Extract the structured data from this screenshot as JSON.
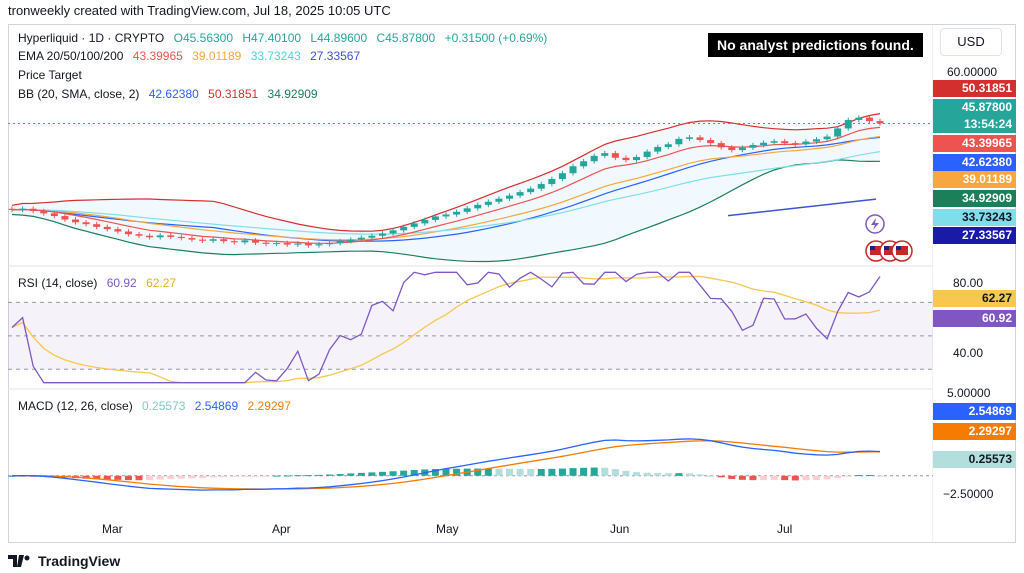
{
  "header": {
    "text": "tronweekly created with TradingView.com, Jul 18, 2025 10:05 UTC"
  },
  "footer": {
    "brand": "TradingView",
    "logo_icon": "tradingview-logo-icon"
  },
  "top_right": {
    "notice": "No analyst predictions found.",
    "currency": "USD"
  },
  "legend": {
    "symbol": "Hyperliquid · 1D · CRYPTO",
    "ohlc": {
      "o": "O45.56300",
      "h": "H47.40100",
      "l": "L44.89600",
      "c": "C45.87800",
      "chg": "+0.31500 (+0.69%)"
    },
    "ema_label": "EMA 20/50/100/200",
    "ema_values": [
      "43.39965",
      "39.01189",
      "33.73243",
      "27.33567"
    ],
    "price_target": "Price Target",
    "bb_label": "BB (20, SMA, close, 2)",
    "bb_values": [
      "42.62380",
      "50.31851",
      "34.92909"
    ],
    "rsi_label": "RSI (14, close)",
    "rsi_values": [
      "60.92",
      "62.27"
    ],
    "macd_label": "MACD (12, 26, close)",
    "macd_values": [
      "0.25573",
      "2.54869",
      "2.29297"
    ]
  },
  "colors": {
    "up": "#26a69a",
    "down": "#ef5350",
    "ema20": "#ef5350",
    "ema50": "#f7a640",
    "ema100": "#80deea",
    "ema200": "#3f51d7",
    "bb_basis": "#2962ff",
    "bb_upper": "#d32f2f",
    "bb_lower": "#1b7f5a",
    "rsi": "#7e57c2",
    "rsi_ma": "#f9c74f",
    "macd": "#2962ff",
    "signal": "#f57c00"
  },
  "price_axis": {
    "top_label": "60.00000"
  },
  "price_tags": [
    {
      "text": "50.31851",
      "color": "#d32f2f"
    },
    {
      "text": "45.87800",
      "color": "#26a69a"
    },
    {
      "text": "13:54:24",
      "color": "#26a69a"
    },
    {
      "text": "43.39965",
      "color": "#ef5350"
    },
    {
      "text": "42.62380",
      "color": "#2962ff"
    },
    {
      "text": "39.01189",
      "color": "#f7a640"
    },
    {
      "text": "34.92909",
      "color": "#1b7f5a"
    },
    {
      "text": "33.73243",
      "color": "#80deea"
    },
    {
      "text": "27.33567",
      "color": "#1a1aa8"
    }
  ],
  "rsi_axis": {
    "labels": [
      "80.00",
      "40.00"
    ],
    "tags": [
      {
        "text": "62.27",
        "color": "#f9c74f"
      },
      {
        "text": "60.92",
        "color": "#7e57c2"
      }
    ]
  },
  "macd_axis": {
    "labels": [
      "5.00000",
      "−2.50000"
    ],
    "tags": [
      {
        "text": "2.54869",
        "color": "#2962ff"
      },
      {
        "text": "2.29297",
        "color": "#f57c00"
      },
      {
        "text": "0.25573",
        "color": "#b2dfdb"
      }
    ]
  },
  "chart_data": {
    "type": "line",
    "months": [
      "Mar",
      "Apr",
      "May",
      "Jun",
      "Jul"
    ],
    "price_series": {
      "name": "Hyperliquid close",
      "values": [
        23.5,
        23.8,
        23.2,
        22.6,
        21.9,
        21.0,
        20.3,
        19.8,
        19.1,
        18.5,
        17.9,
        17.2,
        16.8,
        16.4,
        16.9,
        16.5,
        16.2,
        15.8,
        15.5,
        15.9,
        15.4,
        15.1,
        15.6,
        15.0,
        14.7,
        14.9,
        14.5,
        14.8,
        14.3,
        14.6,
        14.9,
        15.4,
        15.8,
        16.3,
        16.8,
        17.4,
        18.2,
        19.1,
        20.0,
        20.9,
        21.8,
        22.3,
        23.0,
        23.9,
        24.8,
        25.6,
        26.4,
        27.2,
        28.1,
        29.0,
        30.2,
        31.5,
        33.0,
        34.8,
        36.1,
        37.5,
        38.2,
        37.0,
        36.4,
        37.2,
        38.6,
        39.8,
        40.5,
        41.9,
        42.3,
        41.6,
        40.8,
        39.7,
        39.0,
        39.6,
        40.3,
        40.9,
        41.3,
        40.8,
        40.5,
        41.2,
        41.8,
        42.5,
        44.6,
        46.8,
        47.4,
        46.5,
        45.9
      ]
    },
    "rsi_series": {
      "name": "RSI",
      "ylim": [
        20,
        90
      ]
    },
    "macd_series": {
      "name": "MACD",
      "ylim": [
        -3.2,
        6.2
      ]
    },
    "ylim": [
      10,
      60
    ]
  }
}
